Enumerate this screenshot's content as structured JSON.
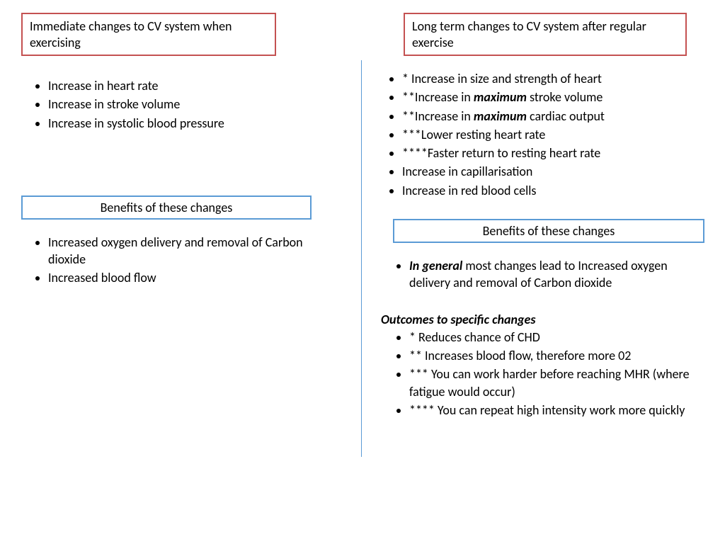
{
  "left": {
    "title": "Immediate changes to CV system when exercising",
    "changes": [
      "Increase in heart rate",
      "Increase in stroke volume",
      "Increase in systolic blood pressure"
    ],
    "benefits_title": "Benefits of these changes",
    "benefits": [
      "Increased oxygen delivery and removal of Carbon dioxide",
      "Increased blood flow"
    ]
  },
  "right": {
    "title": "Long term changes to CV system after regular exercise",
    "changes": [
      {
        "pre": "* Increase in size and strength of heart"
      },
      {
        "pre": "**Increase in ",
        "em": "maximum",
        "post": " stroke volume"
      },
      {
        "pre": "**Increase in ",
        "em": "maximum",
        "post": " cardiac output"
      },
      {
        "pre": "***Lower resting heart rate"
      },
      {
        "pre": "****Faster return to resting heart rate"
      },
      {
        "pre": "Increase in capillarisation"
      },
      {
        "pre": "Increase in red blood cells"
      }
    ],
    "benefits_title": "Benefits of these changes",
    "general_em": "In general",
    "general_post": " most changes lead to Increased oxygen delivery and removal of Carbon dioxide",
    "outcomes_title": "Outcomes to specific changes",
    "outcomes": [
      "* Reduces chance of CHD",
      "** Increases blood flow, therefore more 02",
      "*** You can work harder before reaching MHR (where fatigue would occur)",
      "**** You can repeat high intensity work more quickly"
    ]
  },
  "style": {
    "red_border": "#c45151",
    "blue_border": "#5b9bd5",
    "divider_color": "#5b9bd5",
    "background": "#ffffff",
    "text_color": "#000000",
    "font_size_body": 18,
    "font_family": "Calibri"
  }
}
